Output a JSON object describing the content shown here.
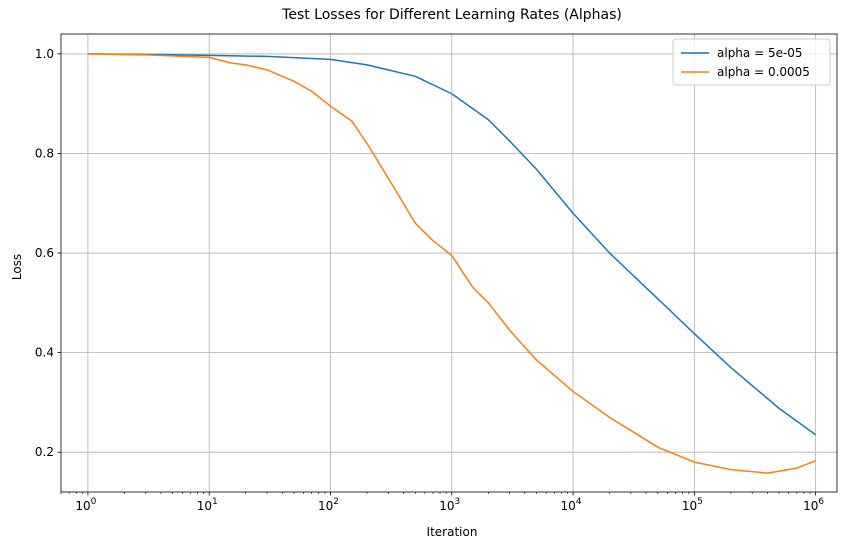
{
  "chart_data": {
    "type": "line",
    "title": "Test Losses for Different Learning Rates (Alphas)",
    "xlabel": "Iteration",
    "ylabel": "Loss",
    "xscale": "log",
    "xlim": [
      0.6,
      1500000.0
    ],
    "ylim": [
      0.12,
      1.04
    ],
    "grid": true,
    "legend_position": "top-right",
    "xticks": [
      {
        "value": 1,
        "base": "10",
        "exp": "0"
      },
      {
        "value": 10,
        "base": "10",
        "exp": "1"
      },
      {
        "value": 100,
        "base": "10",
        "exp": "2"
      },
      {
        "value": 1000,
        "base": "10",
        "exp": "3"
      },
      {
        "value": 10000,
        "base": "10",
        "exp": "4"
      },
      {
        "value": 100000,
        "base": "10",
        "exp": "5"
      },
      {
        "value": 1000000,
        "base": "10",
        "exp": "6"
      }
    ],
    "yticks": [
      {
        "value": 0.2,
        "label": "0.2"
      },
      {
        "value": 0.4,
        "label": "0.4"
      },
      {
        "value": 0.6,
        "label": "0.6"
      },
      {
        "value": 0.8,
        "label": "0.8"
      },
      {
        "value": 1.0,
        "label": "1.0"
      }
    ],
    "series": [
      {
        "name": "alpha = 5e-05",
        "color": "#1f77b4",
        "x": [
          1,
          3,
          10,
          30,
          100,
          200,
          500,
          1000,
          2000,
          3000,
          5000,
          10000,
          20000,
          50000,
          100000,
          200000,
          500000,
          1000000
        ],
        "y": [
          1.0,
          0.999,
          0.997,
          0.995,
          0.989,
          0.978,
          0.955,
          0.92,
          0.868,
          0.825,
          0.768,
          0.68,
          0.6,
          0.508,
          0.438,
          0.37,
          0.288,
          0.235
        ]
      },
      {
        "name": "alpha = 0.0005",
        "color": "#ff7f0e",
        "x": [
          1,
          3,
          10,
          15,
          20,
          30,
          50,
          70,
          100,
          150,
          200,
          300,
          500,
          700,
          1000,
          1500,
          2000,
          3000,
          5000,
          10000,
          20000,
          50000,
          100000,
          200000,
          400000,
          700000,
          1000000
        ],
        "y": [
          1.0,
          0.998,
          0.993,
          0.982,
          0.978,
          0.968,
          0.945,
          0.925,
          0.895,
          0.865,
          0.82,
          0.75,
          0.66,
          0.625,
          0.595,
          0.53,
          0.5,
          0.445,
          0.385,
          0.322,
          0.27,
          0.21,
          0.18,
          0.165,
          0.158,
          0.168,
          0.183
        ]
      }
    ]
  }
}
